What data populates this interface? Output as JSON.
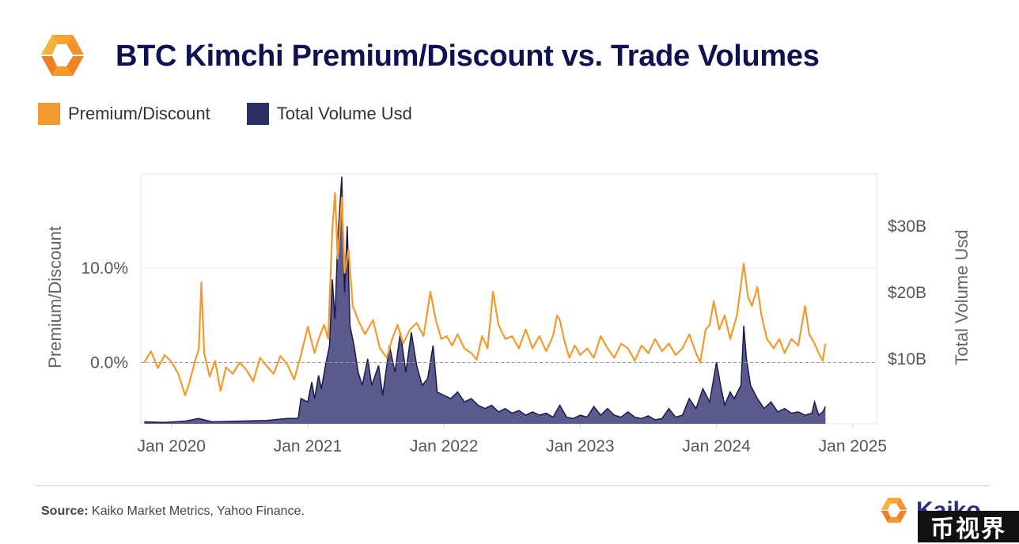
{
  "header": {
    "title": "BTC Kimchi Premium/Discount vs. Trade Volumes"
  },
  "legend": [
    {
      "label": "Premium/Discount",
      "color": "#f29a2e"
    },
    {
      "label": "Total Volume Usd",
      "color": "#2c2d63"
    }
  ],
  "footer": {
    "source_label": "Source:",
    "source_text": "Kaiko Market Metrics, Yahoo Finance.",
    "brand": "Kaiko",
    "watermark": "币视界"
  },
  "colors": {
    "premium_line": "#f29a2e",
    "volume_fill": "#5a5a8c",
    "volume_line": "#1a1a4e",
    "title": "#0f1150"
  },
  "chart_data": {
    "type": "line",
    "title": "BTC Kimchi Premium/Discount vs. Trade Volumes",
    "xlabel": "",
    "ylabel": "Premium/Discount",
    "y2label": "Total Volume Usd",
    "x_ticks": [
      "Jan 2020",
      "Jan 2021",
      "Jan 2022",
      "Jan 2023",
      "Jan 2024",
      "Jan 2025"
    ],
    "x_tick_years": [
      2020,
      2021,
      2022,
      2023,
      2024,
      2025
    ],
    "xlim": [
      2019.775,
      2025.175
    ],
    "y_ticks": [
      "0.0%",
      "10.0%"
    ],
    "y_tick_values": [
      0,
      10
    ],
    "ylim": [
      -6.5,
      20
    ],
    "y2_ticks": [
      "$10B",
      "$20B",
      "$30B"
    ],
    "y2_tick_values": [
      10,
      20,
      30
    ],
    "y2lim": [
      0.2,
      37.9
    ],
    "zero_line": 0,
    "grid": "horizontal",
    "series": [
      {
        "name": "Premium/Discount",
        "axis": "left",
        "style": "line",
        "points": [
          [
            2019.8,
            0.0
          ],
          [
            2019.85,
            1.2
          ],
          [
            2019.9,
            -0.6
          ],
          [
            2019.95,
            0.8
          ],
          [
            2020.0,
            0.1
          ],
          [
            2020.05,
            -1.2
          ],
          [
            2020.1,
            -3.5
          ],
          [
            2020.13,
            -2.2
          ],
          [
            2020.17,
            0.0
          ],
          [
            2020.2,
            1.4
          ],
          [
            2020.22,
            8.5
          ],
          [
            2020.24,
            1.0
          ],
          [
            2020.28,
            -1.5
          ],
          [
            2020.32,
            0.2
          ],
          [
            2020.36,
            -3.0
          ],
          [
            2020.4,
            -0.5
          ],
          [
            2020.45,
            -1.2
          ],
          [
            2020.5,
            0.0
          ],
          [
            2020.55,
            -0.8
          ],
          [
            2020.6,
            -2.0
          ],
          [
            2020.65,
            0.5
          ],
          [
            2020.7,
            -0.4
          ],
          [
            2020.75,
            -1.2
          ],
          [
            2020.8,
            0.7
          ],
          [
            2020.85,
            -0.2
          ],
          [
            2020.9,
            -1.8
          ],
          [
            2020.95,
            0.8
          ],
          [
            2021.0,
            3.8
          ],
          [
            2021.05,
            1.0
          ],
          [
            2021.08,
            2.5
          ],
          [
            2021.12,
            4.0
          ],
          [
            2021.15,
            2.5
          ],
          [
            2021.18,
            14.0
          ],
          [
            2021.2,
            18.0
          ],
          [
            2021.22,
            11.0
          ],
          [
            2021.25,
            17.5
          ],
          [
            2021.27,
            9.5
          ],
          [
            2021.3,
            12.0
          ],
          [
            2021.33,
            6.0
          ],
          [
            2021.37,
            4.5
          ],
          [
            2021.42,
            3.0
          ],
          [
            2021.48,
            4.5
          ],
          [
            2021.53,
            1.5
          ],
          [
            2021.58,
            0.5
          ],
          [
            2021.62,
            2.5
          ],
          [
            2021.66,
            4.0
          ],
          [
            2021.7,
            2.0
          ],
          [
            2021.75,
            3.5
          ],
          [
            2021.8,
            4.2
          ],
          [
            2021.85,
            2.8
          ],
          [
            2021.9,
            7.5
          ],
          [
            2021.94,
            4.5
          ],
          [
            2021.98,
            2.5
          ],
          [
            2022.02,
            2.8
          ],
          [
            2022.06,
            1.8
          ],
          [
            2022.1,
            3.0
          ],
          [
            2022.15,
            1.5
          ],
          [
            2022.2,
            1.0
          ],
          [
            2022.24,
            0.3
          ],
          [
            2022.28,
            2.8
          ],
          [
            2022.32,
            1.5
          ],
          [
            2022.36,
            7.5
          ],
          [
            2022.4,
            4.0
          ],
          [
            2022.45,
            2.5
          ],
          [
            2022.5,
            2.8
          ],
          [
            2022.55,
            1.5
          ],
          [
            2022.6,
            3.5
          ],
          [
            2022.65,
            1.5
          ],
          [
            2022.7,
            2.8
          ],
          [
            2022.75,
            1.2
          ],
          [
            2022.8,
            2.8
          ],
          [
            2022.83,
            5.0
          ],
          [
            2022.85,
            4.5
          ],
          [
            2022.88,
            2.5
          ],
          [
            2022.92,
            0.5
          ],
          [
            2022.96,
            1.8
          ],
          [
            2023.0,
            0.8
          ],
          [
            2023.05,
            1.5
          ],
          [
            2023.1,
            0.5
          ],
          [
            2023.15,
            2.8
          ],
          [
            2023.2,
            1.5
          ],
          [
            2023.25,
            0.5
          ],
          [
            2023.3,
            2.0
          ],
          [
            2023.35,
            1.5
          ],
          [
            2023.4,
            0.2
          ],
          [
            2023.45,
            1.8
          ],
          [
            2023.5,
            1.0
          ],
          [
            2023.55,
            2.5
          ],
          [
            2023.6,
            1.2
          ],
          [
            2023.65,
            2.0
          ],
          [
            2023.7,
            0.8
          ],
          [
            2023.75,
            1.5
          ],
          [
            2023.8,
            3.0
          ],
          [
            2023.85,
            1.0
          ],
          [
            2023.88,
            0.0
          ],
          [
            2023.92,
            3.5
          ],
          [
            2023.95,
            4.0
          ],
          [
            2023.98,
            6.5
          ],
          [
            2024.02,
            3.5
          ],
          [
            2024.06,
            5.0
          ],
          [
            2024.1,
            2.5
          ],
          [
            2024.15,
            5.0
          ],
          [
            2024.2,
            10.5
          ],
          [
            2024.23,
            7.0
          ],
          [
            2024.26,
            6.0
          ],
          [
            2024.3,
            8.0
          ],
          [
            2024.33,
            5.0
          ],
          [
            2024.37,
            2.5
          ],
          [
            2024.42,
            1.5
          ],
          [
            2024.46,
            2.5
          ],
          [
            2024.5,
            1.0
          ],
          [
            2024.55,
            2.5
          ],
          [
            2024.6,
            1.8
          ],
          [
            2024.65,
            6.0
          ],
          [
            2024.68,
            3.0
          ],
          [
            2024.72,
            2.0
          ],
          [
            2024.75,
            1.0
          ],
          [
            2024.78,
            0.2
          ],
          [
            2024.8,
            2.0
          ]
        ]
      },
      {
        "name": "Total Volume Usd",
        "axis": "right",
        "style": "area",
        "points": [
          [
            2019.8,
            0.5
          ],
          [
            2019.95,
            0.4
          ],
          [
            2020.1,
            0.6
          ],
          [
            2020.2,
            1.0
          ],
          [
            2020.3,
            0.5
          ],
          [
            2020.5,
            0.6
          ],
          [
            2020.7,
            0.7
          ],
          [
            2020.85,
            1.0
          ],
          [
            2020.93,
            1.0
          ],
          [
            2020.95,
            4.0
          ],
          [
            2021.0,
            3.5
          ],
          [
            2021.03,
            6.5
          ],
          [
            2021.05,
            4.0
          ],
          [
            2021.08,
            7.5
          ],
          [
            2021.1,
            5.5
          ],
          [
            2021.13,
            9.0
          ],
          [
            2021.16,
            12.0
          ],
          [
            2021.18,
            22.0
          ],
          [
            2021.2,
            16.0
          ],
          [
            2021.22,
            28.0
          ],
          [
            2021.25,
            37.5
          ],
          [
            2021.27,
            20.0
          ],
          [
            2021.29,
            30.0
          ],
          [
            2021.31,
            15.0
          ],
          [
            2021.34,
            12.0
          ],
          [
            2021.37,
            8.0
          ],
          [
            2021.4,
            6.0
          ],
          [
            2021.44,
            10.0
          ],
          [
            2021.47,
            6.0
          ],
          [
            2021.52,
            9.0
          ],
          [
            2021.55,
            4.5
          ],
          [
            2021.6,
            12.0
          ],
          [
            2021.64,
            8.0
          ],
          [
            2021.68,
            14.0
          ],
          [
            2021.72,
            8.0
          ],
          [
            2021.76,
            14.0
          ],
          [
            2021.8,
            9.0
          ],
          [
            2021.84,
            6.0
          ],
          [
            2021.88,
            7.0
          ],
          [
            2021.92,
            12.0
          ],
          [
            2021.95,
            5.0
          ],
          [
            2022.0,
            4.5
          ],
          [
            2022.05,
            4.0
          ],
          [
            2022.1,
            5.0
          ],
          [
            2022.15,
            3.5
          ],
          [
            2022.2,
            4.0
          ],
          [
            2022.25,
            3.0
          ],
          [
            2022.3,
            2.5
          ],
          [
            2022.35,
            3.0
          ],
          [
            2022.4,
            2.0
          ],
          [
            2022.45,
            2.5
          ],
          [
            2022.5,
            1.8
          ],
          [
            2022.55,
            2.2
          ],
          [
            2022.6,
            1.5
          ],
          [
            2022.65,
            2.0
          ],
          [
            2022.7,
            1.5
          ],
          [
            2022.75,
            1.8
          ],
          [
            2022.8,
            1.2
          ],
          [
            2022.85,
            3.0
          ],
          [
            2022.9,
            1.2
          ],
          [
            2022.95,
            1.0
          ],
          [
            2023.0,
            1.5
          ],
          [
            2023.05,
            1.2
          ],
          [
            2023.1,
            2.8
          ],
          [
            2023.15,
            1.5
          ],
          [
            2023.2,
            2.5
          ],
          [
            2023.25,
            1.5
          ],
          [
            2023.3,
            1.2
          ],
          [
            2023.35,
            2.0
          ],
          [
            2023.4,
            1.2
          ],
          [
            2023.45,
            1.0
          ],
          [
            2023.5,
            1.4
          ],
          [
            2023.55,
            0.8
          ],
          [
            2023.6,
            1.0
          ],
          [
            2023.65,
            2.5
          ],
          [
            2023.7,
            1.2
          ],
          [
            2023.75,
            1.5
          ],
          [
            2023.8,
            4.0
          ],
          [
            2023.85,
            2.5
          ],
          [
            2023.9,
            5.5
          ],
          [
            2023.95,
            3.5
          ],
          [
            2024.0,
            9.5
          ],
          [
            2024.03,
            6.0
          ],
          [
            2024.06,
            3.0
          ],
          [
            2024.1,
            5.0
          ],
          [
            2024.13,
            4.0
          ],
          [
            2024.18,
            6.0
          ],
          [
            2024.2,
            15.0
          ],
          [
            2024.22,
            10.0
          ],
          [
            2024.25,
            6.0
          ],
          [
            2024.3,
            4.0
          ],
          [
            2024.35,
            2.5
          ],
          [
            2024.4,
            3.5
          ],
          [
            2024.45,
            2.0
          ],
          [
            2024.5,
            2.5
          ],
          [
            2024.55,
            1.8
          ],
          [
            2024.6,
            2.0
          ],
          [
            2024.65,
            1.5
          ],
          [
            2024.7,
            1.8
          ],
          [
            2024.72,
            3.5
          ],
          [
            2024.75,
            1.5
          ],
          [
            2024.78,
            2.0
          ],
          [
            2024.8,
            2.8
          ]
        ]
      }
    ]
  }
}
